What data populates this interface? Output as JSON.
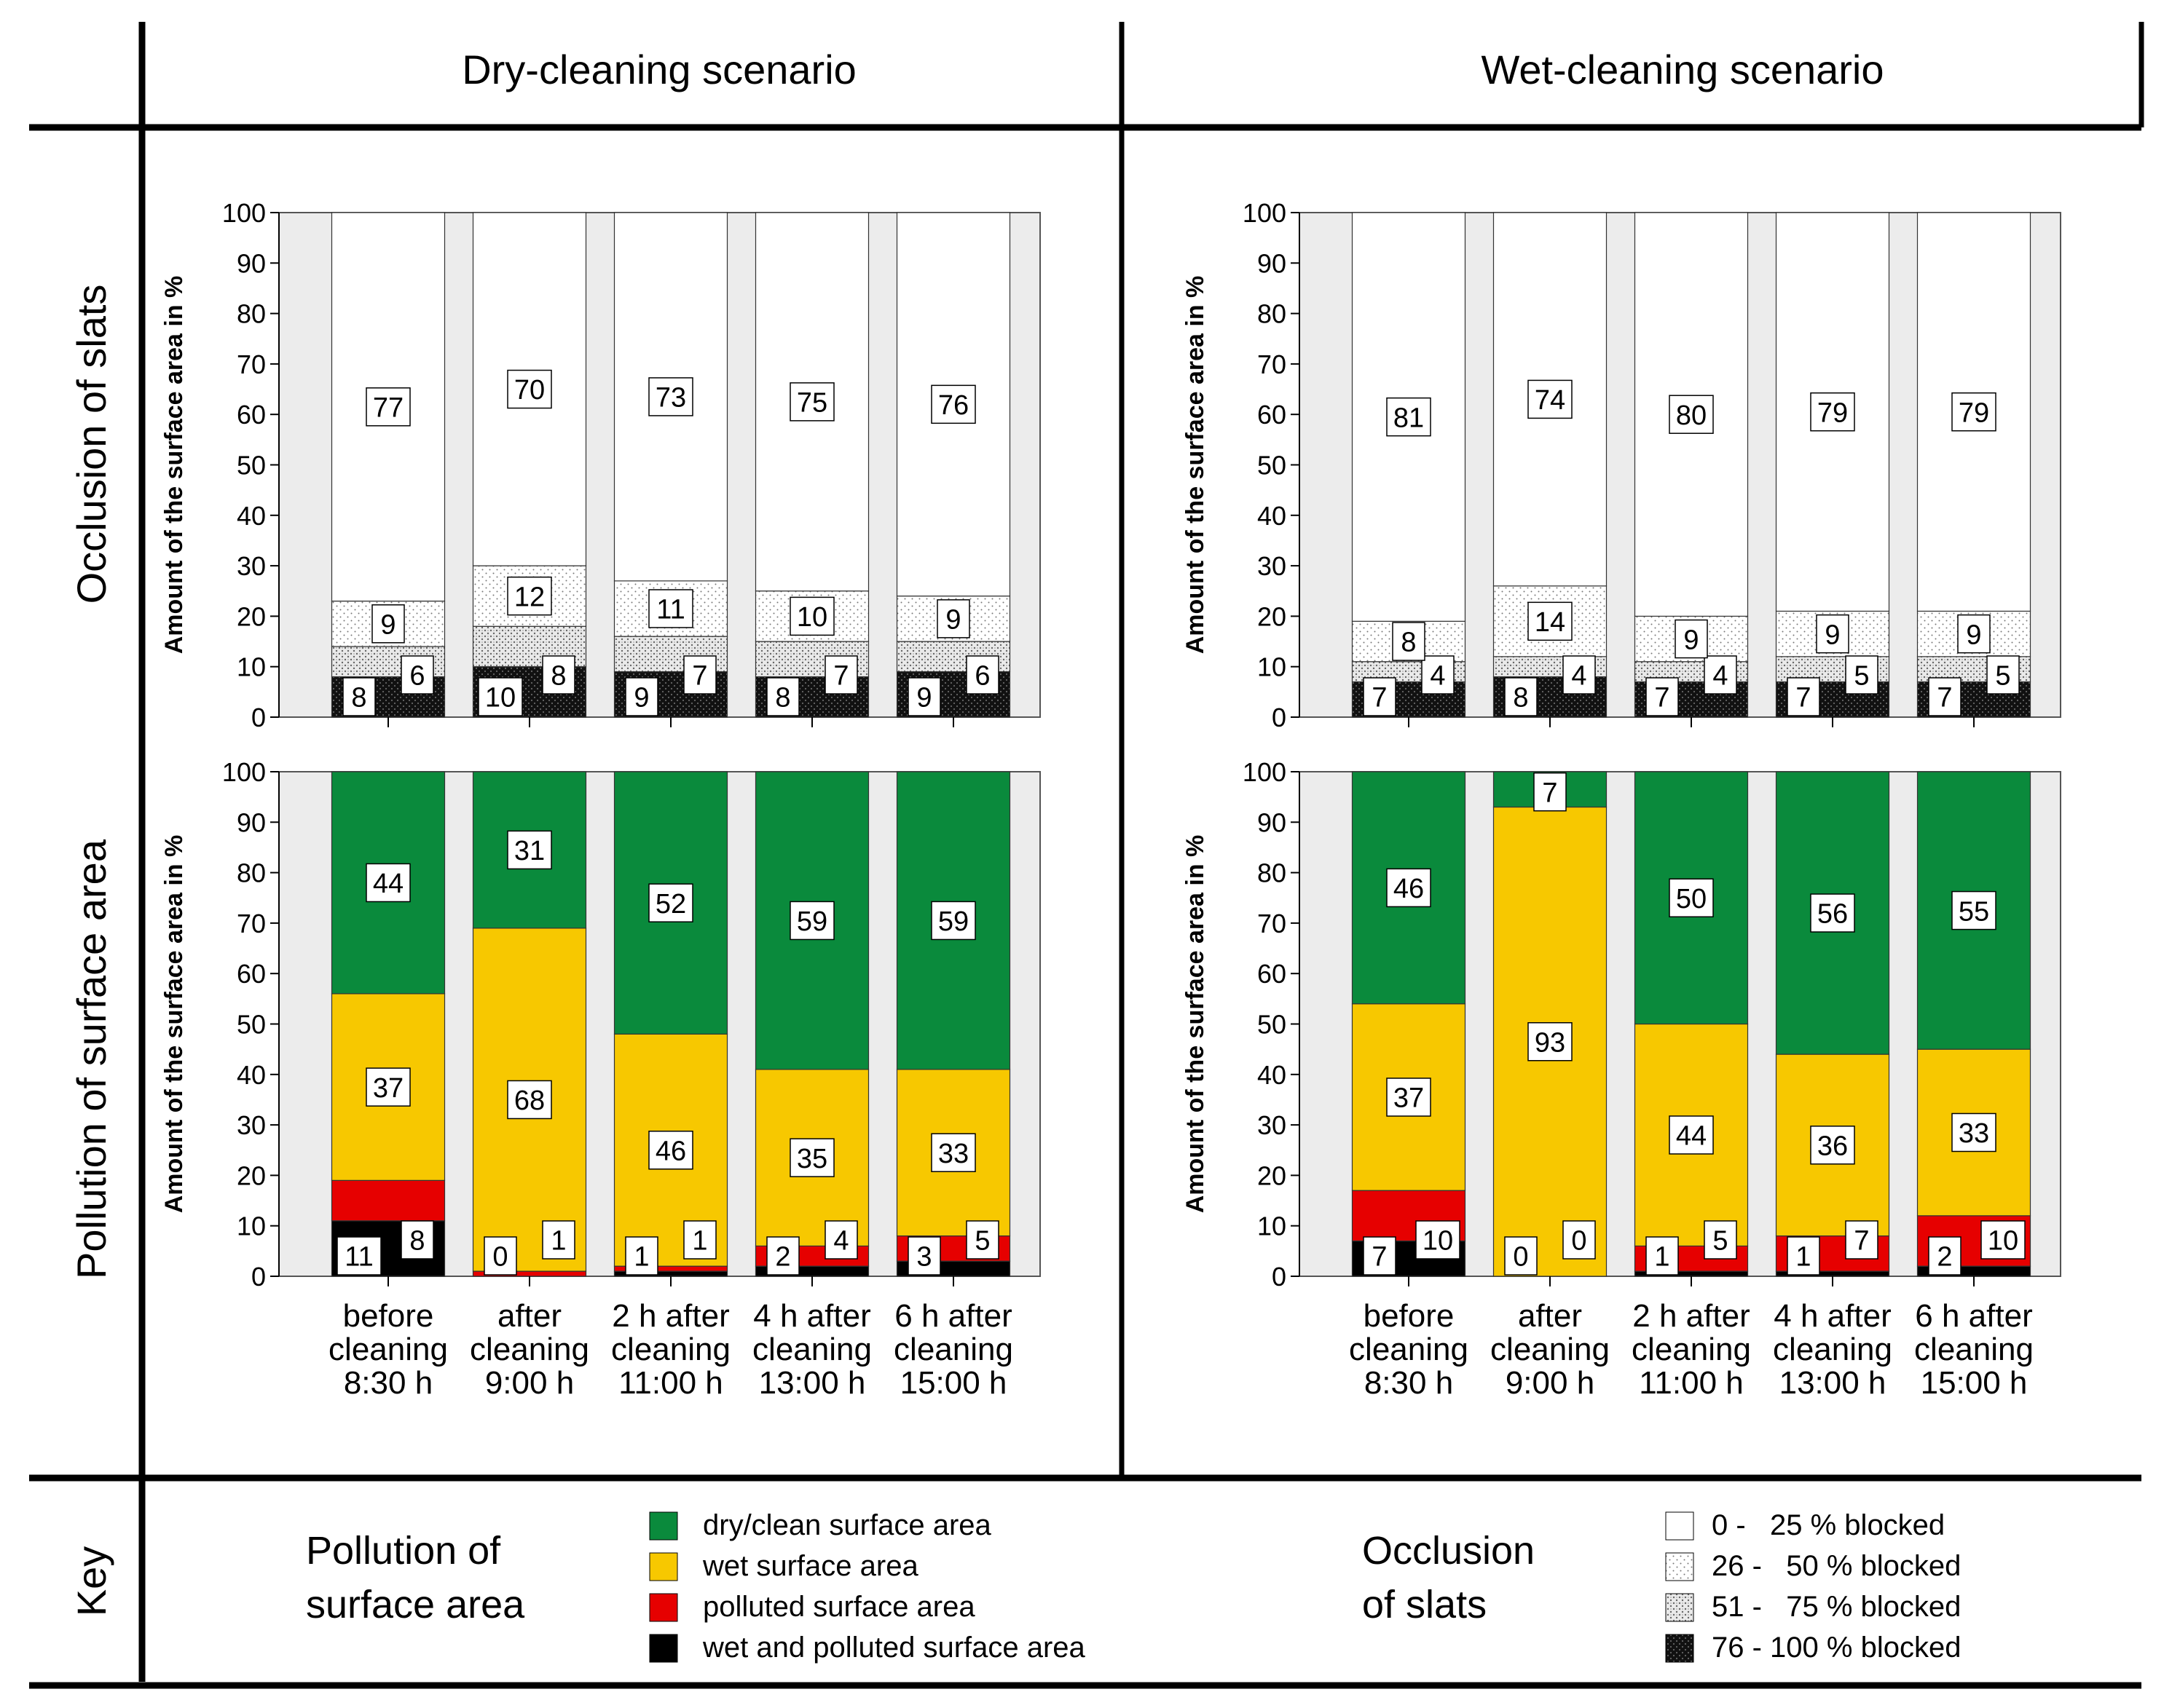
{
  "columns": {
    "dry": "Dry-cleaning scenario",
    "wet": "Wet-cleaning scenario"
  },
  "rows": {
    "occlusion": "Occlusion of slats",
    "pollution": "Pollution of surface area",
    "key": "Key"
  },
  "ylabel": "Amount of the surface area in %",
  "time_labels": [
    [
      "before",
      "cleaning",
      "8:30 h"
    ],
    [
      "after",
      "cleaning",
      "9:00 h"
    ],
    [
      "2 h after",
      "cleaning",
      "11:00 h"
    ],
    [
      "4 h after",
      "cleaning",
      "13:00 h"
    ],
    [
      "6 h after",
      "cleaning",
      "15:00 h"
    ]
  ],
  "key": {
    "pollution_title": [
      "Pollution of",
      "surface area"
    ],
    "pollution_items": [
      {
        "label": "dry/clean surface area",
        "color": "#0a8a3c"
      },
      {
        "label": "wet surface area",
        "color": "#f7c800"
      },
      {
        "label": "polluted surface area",
        "color": "#e60000"
      },
      {
        "label": "wet and polluted surface area",
        "color": "#000000"
      }
    ],
    "occlusion_title": [
      "Occlusion",
      "of slats"
    ],
    "occlusion_items": [
      {
        "label": "0 -   25 % blocked",
        "pattern": "white"
      },
      {
        "label": "26 -   50 % blocked",
        "pattern": "dots-light"
      },
      {
        "label": "51 -   75 % blocked",
        "pattern": "dots-medium"
      },
      {
        "label": "76 - 100 % blocked",
        "pattern": "dots-dark"
      }
    ]
  },
  "chart_data": [
    {
      "type": "bar",
      "stacked": true,
      "panel": "dry-occlusion",
      "categories": [
        "before cleaning 8:30 h",
        "after cleaning 9:00 h",
        "2 h after cleaning 11:00 h",
        "4 h after cleaning 13:00 h",
        "6 h after cleaning 15:00 h"
      ],
      "ylim": [
        0,
        100
      ],
      "yticks": [
        0,
        10,
        20,
        30,
        40,
        50,
        60,
        70,
        80,
        90,
        100
      ],
      "series": [
        {
          "name": "76 - 100 % blocked",
          "values": [
            8,
            10,
            9,
            8,
            9
          ]
        },
        {
          "name": "51 - 75 % blocked",
          "values": [
            6,
            8,
            7,
            7,
            6
          ]
        },
        {
          "name": "26 - 50 % blocked",
          "values": [
            9,
            12,
            11,
            10,
            9
          ]
        },
        {
          "name": "0 - 25 % blocked",
          "values": [
            77,
            70,
            73,
            75,
            76
          ]
        }
      ]
    },
    {
      "type": "bar",
      "stacked": true,
      "panel": "wet-occlusion",
      "categories": [
        "before cleaning 8:30 h",
        "after cleaning 9:00 h",
        "2 h after cleaning 11:00 h",
        "4 h after cleaning 13:00 h",
        "6 h after cleaning 15:00 h"
      ],
      "ylim": [
        0,
        100
      ],
      "yticks": [
        0,
        10,
        20,
        30,
        40,
        50,
        60,
        70,
        80,
        90,
        100
      ],
      "series": [
        {
          "name": "76 - 100 % blocked",
          "values": [
            7,
            8,
            7,
            7,
            7
          ]
        },
        {
          "name": "51 - 75 % blocked",
          "values": [
            4,
            4,
            4,
            5,
            5
          ]
        },
        {
          "name": "26 - 50 % blocked",
          "values": [
            8,
            14,
            9,
            9,
            9
          ]
        },
        {
          "name": "0 - 25 % blocked",
          "values": [
            81,
            74,
            80,
            79,
            79
          ]
        }
      ]
    },
    {
      "type": "bar",
      "stacked": true,
      "panel": "dry-pollution",
      "categories": [
        "before cleaning 8:30 h",
        "after cleaning 9:00 h",
        "2 h after cleaning 11:00 h",
        "4 h after cleaning 13:00 h",
        "6 h after cleaning 15:00 h"
      ],
      "ylim": [
        0,
        100
      ],
      "yticks": [
        0,
        10,
        20,
        30,
        40,
        50,
        60,
        70,
        80,
        90,
        100
      ],
      "series": [
        {
          "name": "wet and polluted surface area",
          "values": [
            11,
            0,
            1,
            2,
            3
          ]
        },
        {
          "name": "polluted surface area",
          "values": [
            8,
            1,
            1,
            4,
            5
          ]
        },
        {
          "name": "wet surface area",
          "values": [
            37,
            68,
            46,
            35,
            33
          ]
        },
        {
          "name": "dry/clean surface area",
          "values": [
            44,
            31,
            52,
            59,
            59
          ]
        }
      ]
    },
    {
      "type": "bar",
      "stacked": true,
      "panel": "wet-pollution",
      "categories": [
        "before cleaning 8:30 h",
        "after cleaning 9:00 h",
        "2 h after cleaning 11:00 h",
        "4 h after cleaning 13:00 h",
        "6 h after cleaning 15:00 h"
      ],
      "ylim": [
        0,
        100
      ],
      "yticks": [
        0,
        10,
        20,
        30,
        40,
        50,
        60,
        70,
        80,
        90,
        100
      ],
      "series": [
        {
          "name": "wet and polluted surface area",
          "values": [
            7,
            0,
            1,
            1,
            2
          ]
        },
        {
          "name": "polluted surface area",
          "values": [
            10,
            0,
            5,
            7,
            10
          ]
        },
        {
          "name": "wet surface area",
          "values": [
            37,
            93,
            44,
            36,
            33
          ]
        },
        {
          "name": "dry/clean surface area",
          "values": [
            46,
            7,
            50,
            56,
            55
          ]
        }
      ]
    }
  ]
}
